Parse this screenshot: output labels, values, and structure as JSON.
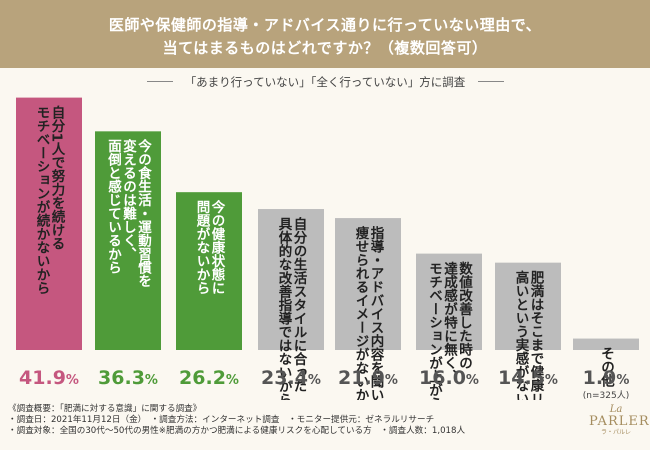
{
  "header": {
    "title_line1": "医師や保健師の指導・アドバイス通りに行っていない理由で、",
    "title_line2": "当てはまるものはどれですか？（複数回答可）",
    "subtitle": "「あまり行っていない」「全く行っていない」方に調査"
  },
  "chart_data": {
    "type": "bar",
    "categories": [
      "自分1人で努力を続けるモチベーションが続かないから",
      "今の食生活・運動習慣を変えるのは難しく、面倒と感じているから",
      "今の健康状態に問題がないから",
      "自分の生活スタイルに合った具体的な改善指導ではないから",
      "指導・アドバイス内容を聞いて、痩せられるイメージがないから",
      "数値改善した時の達成感が特に無く、モチベーションが上がらないから",
      "肥満はそこまで健康リスクが高いという実感がないから",
      "その他"
    ],
    "label_lines": [
      [
        "自分1人で努力を続ける",
        "モチベーションが続かないから"
      ],
      [
        "今の食生活・運動習慣を",
        "変えるのは難しく、",
        "面倒と感じているから"
      ],
      [
        "今の健康状態に",
        "問題がないから"
      ],
      [
        "自分の生活スタイルに合った",
        "具体的な改善指導ではないから"
      ],
      [
        "指導・アドバイス内容を聞いて、",
        "痩せられるイメージがないから"
      ],
      [
        "数値改善した時の",
        "達成感が特に無く、",
        "モチベーションが上がらないから"
      ],
      [
        "肥満はそこまで健康リスクが",
        "高いという実感がないから"
      ],
      [
        "その他"
      ]
    ],
    "values": [
      41.9,
      36.3,
      26.2,
      23.4,
      21.9,
      16.0,
      14.5,
      1.9
    ],
    "value_labels": [
      "41.9",
      "36.3",
      "26.2",
      "23.4",
      "21.9",
      "16.0",
      "14.5",
      "1.9"
    ],
    "percent_sign": "%",
    "sample_note": "(n=325人)",
    "colors": [
      "#c5577f",
      "#4f9b39",
      "#4f9b39",
      "#bcbcbc",
      "#bcbcbc",
      "#bcbcbc",
      "#bcbcbc",
      "#bcbcbc"
    ],
    "value_colors": [
      "#c5577f",
      "#4f9b39",
      "#4f9b39",
      "#555555",
      "#555555",
      "#555555",
      "#555555",
      "#555555"
    ],
    "label_colors": [
      "#222222",
      "#ffffff",
      "#ffffff",
      "#222222",
      "#222222",
      "#222222",
      "#222222",
      "#222222"
    ]
  },
  "footer": {
    "line1": "《調査概要：「肥満に対する意識」に関する調査》",
    "line2": "・調査日：2021年11月12日（金）　・調査方法：インターネット調査　・モニター提供元：ゼネラルリサーチ",
    "line3": "・調査対象：全国の30代〜50代の男性※肥満の方かつ肥満による健康リスクを心配している方　・調査人数：1,018人"
  },
  "logo": {
    "script": "La",
    "main": "PARLER",
    "sub": "ラ・パルレ"
  }
}
